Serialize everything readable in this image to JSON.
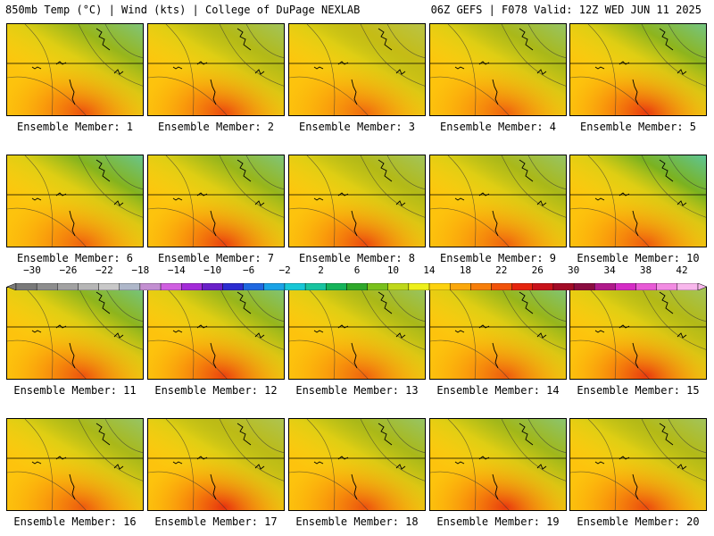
{
  "header": {
    "title_left": "850mb Temp (°C) | Wind (kts) | College of DuPage NEXLAB",
    "title_right": "06Z GEFS | F078 Valid: 12Z WED JUN 11 2025"
  },
  "panels": [
    {
      "label": "Ensemble Member: 1",
      "warm": 0.7,
      "cool": 0.55
    },
    {
      "label": "Ensemble Member: 2",
      "warm": 0.75,
      "cool": 0.4
    },
    {
      "label": "Ensemble Member: 3",
      "warm": 0.55,
      "cool": 0.3
    },
    {
      "label": "Ensemble Member: 4",
      "warm": 0.6,
      "cool": 0.45
    },
    {
      "label": "Ensemble Member: 5",
      "warm": 0.85,
      "cool": 0.6
    },
    {
      "label": "Ensemble Member: 6",
      "warm": 0.6,
      "cool": 0.65
    },
    {
      "label": "Ensemble Member: 7",
      "warm": 0.8,
      "cool": 0.55
    },
    {
      "label": "Ensemble Member: 8",
      "warm": 0.75,
      "cool": 0.4
    },
    {
      "label": "Ensemble Member: 9",
      "warm": 0.6,
      "cool": 0.45
    },
    {
      "label": "Ensemble Member: 10",
      "warm": 0.65,
      "cool": 0.7
    },
    {
      "label": "Ensemble Member: 11",
      "warm": 0.7,
      "cool": 0.6
    },
    {
      "label": "Ensemble Member: 12",
      "warm": 0.8,
      "cool": 0.55
    },
    {
      "label": "Ensemble Member: 13",
      "warm": 0.6,
      "cool": 0.45
    },
    {
      "label": "Ensemble Member: 14",
      "warm": 0.65,
      "cool": 0.55
    },
    {
      "label": "Ensemble Member: 15",
      "warm": 0.85,
      "cool": 0.4
    },
    {
      "label": "Ensemble Member: 16",
      "warm": 0.65,
      "cool": 0.45
    },
    {
      "label": "Ensemble Member: 17",
      "warm": 0.9,
      "cool": 0.35
    },
    {
      "label": "Ensemble Member: 18",
      "warm": 0.7,
      "cool": 0.45
    },
    {
      "label": "Ensemble Member: 19",
      "warm": 0.85,
      "cool": 0.5
    },
    {
      "label": "Ensemble Member: 20",
      "warm": 0.75,
      "cool": 0.4
    }
  ],
  "colorbar": {
    "ticks": [
      "-30",
      "-26",
      "-22",
      "-18",
      "-14",
      "-10",
      "-6",
      "-2",
      "2",
      "6",
      "10",
      "14",
      "18",
      "22",
      "26",
      "30",
      "34",
      "38",
      "42"
    ],
    "colors": [
      "#7a7a7a",
      "#8e8e8e",
      "#a2a2a2",
      "#b6b6b6",
      "#c8c8c8",
      "#aeb7c9",
      "#c38fd1",
      "#d05fe0",
      "#a42bd8",
      "#6a20c8",
      "#2c2cd0",
      "#1f68e0",
      "#1aa3e6",
      "#18c7d6",
      "#19c4a0",
      "#16b45a",
      "#2fa82a",
      "#7ac11c",
      "#bfd81a",
      "#eef01a",
      "#fdd20f",
      "#fba80c",
      "#f77f0a",
      "#f1530b",
      "#e5240e",
      "#c8121a",
      "#a20b26",
      "#8a0c40",
      "#b01a8a",
      "#d52cc5",
      "#e85ad6",
      "#f28ce2",
      "#f8b7ec"
    ]
  }
}
